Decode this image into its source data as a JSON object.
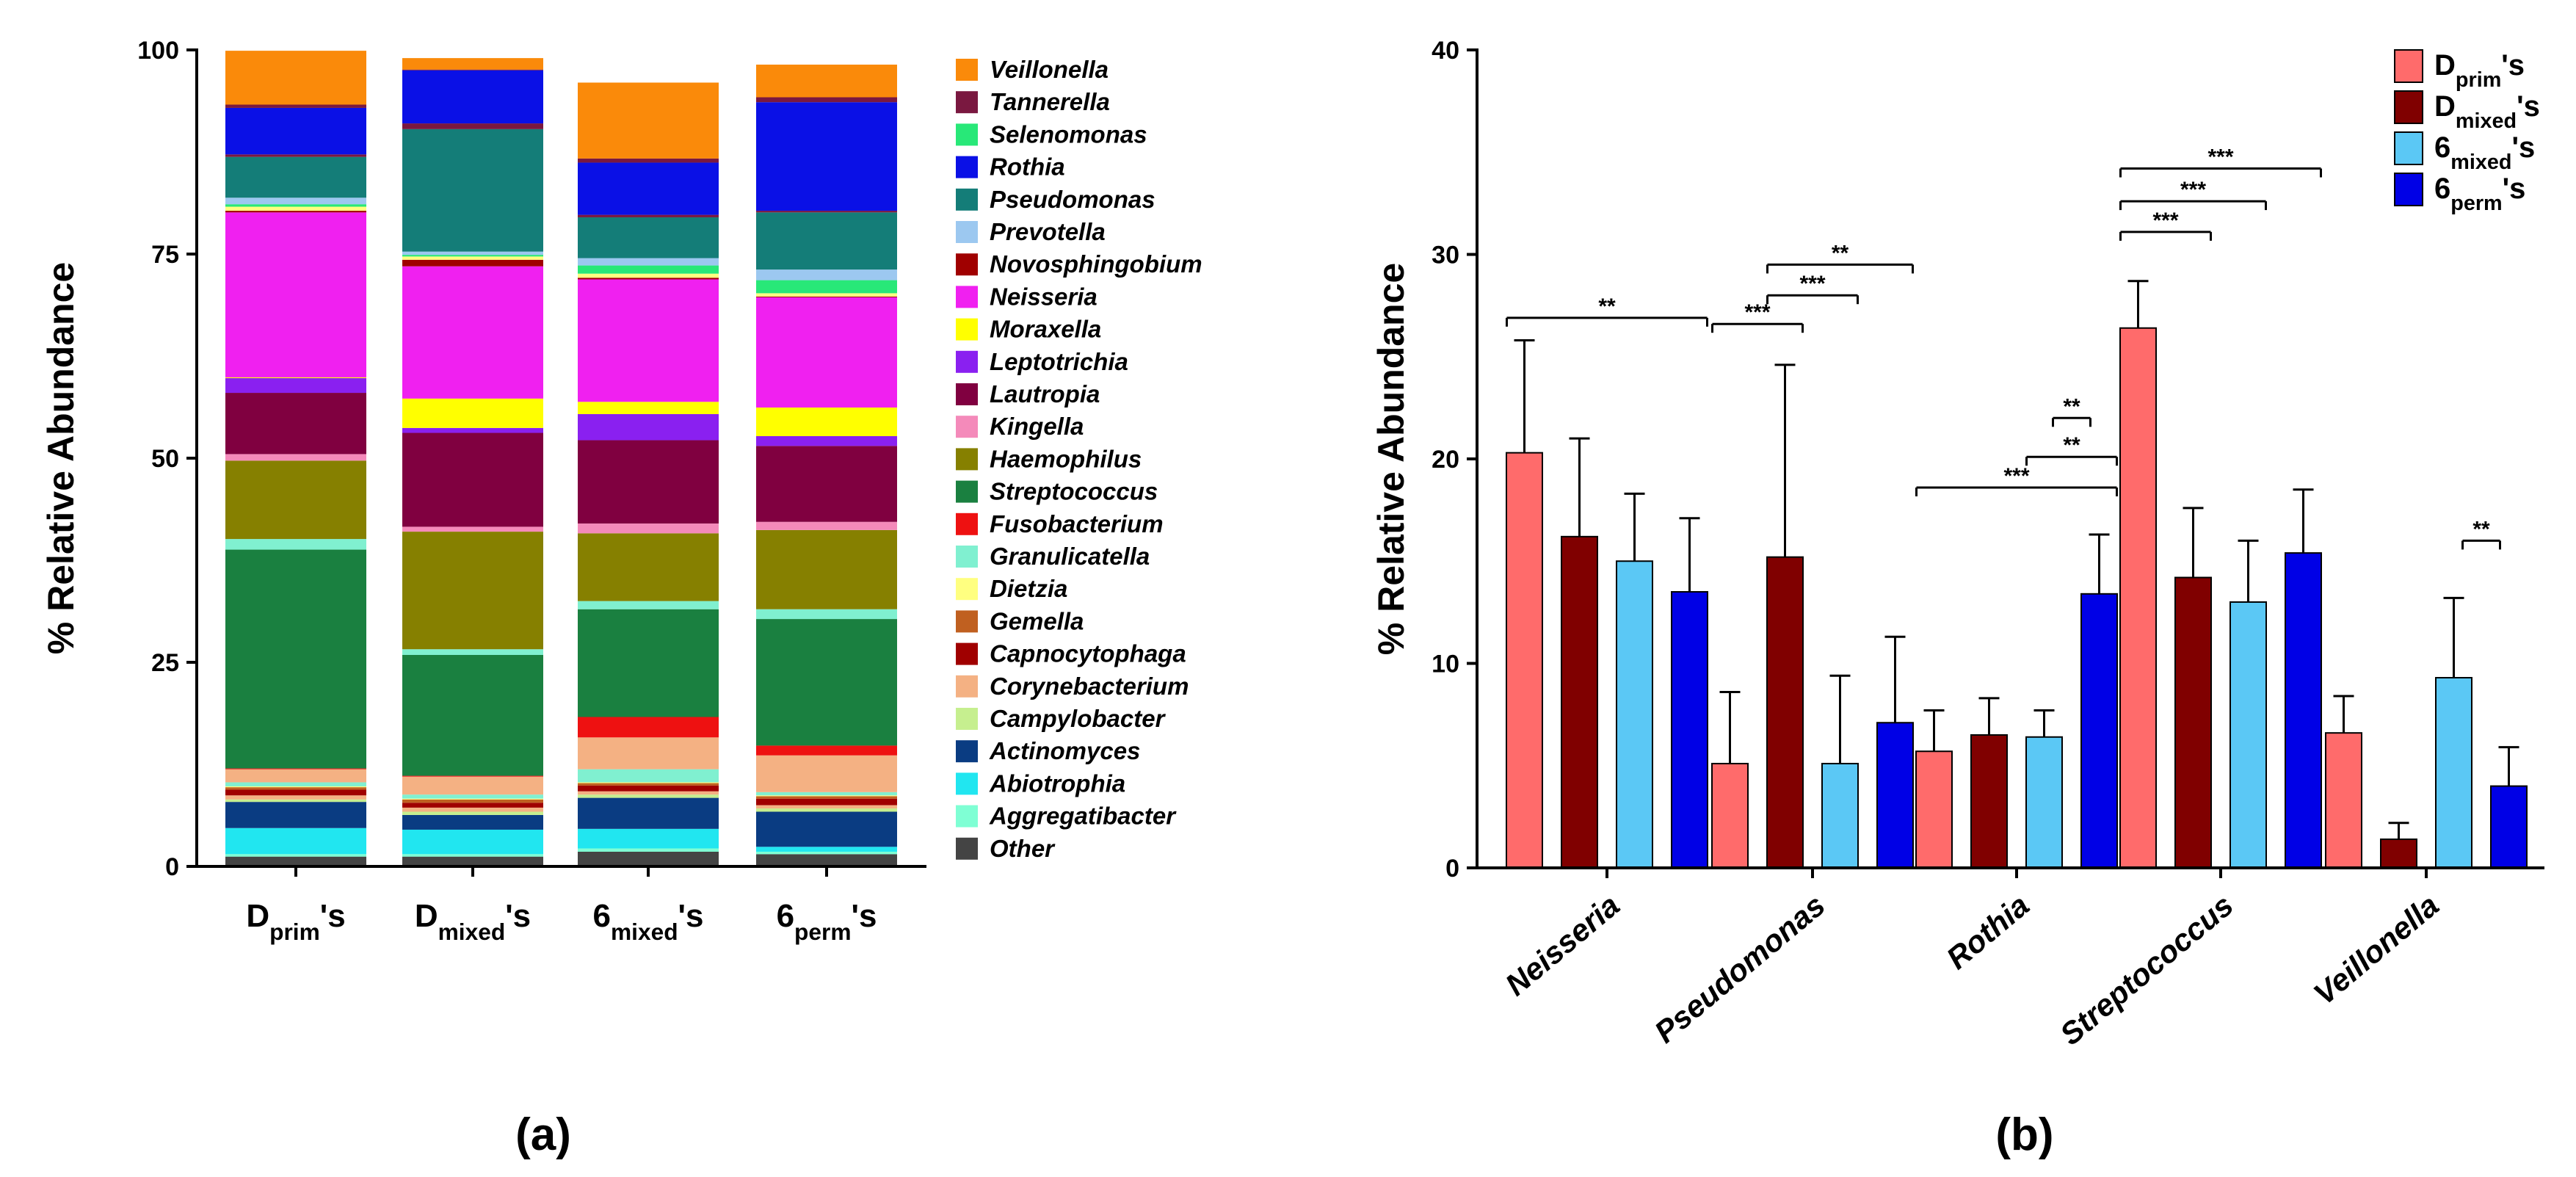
{
  "chart_data": [
    {
      "type": "bar",
      "stacked": true,
      "panel_label": "(a)",
      "ylabel": "% Relative Abundance",
      "ylim": [
        0,
        100
      ],
      "yticks": [
        "0",
        "25",
        "50",
        "75",
        "100"
      ],
      "categories": [
        {
          "main": "D",
          "sub": "prim",
          "suffix": "'s"
        },
        {
          "main": "D",
          "sub": "mixed",
          "suffix": "'s"
        },
        {
          "main": "6",
          "sub": "mixed",
          "suffix": "'s"
        },
        {
          "main": "6",
          "sub": "perm",
          "suffix": "'s"
        }
      ],
      "series": [
        {
          "name": "Other",
          "color": "#444444",
          "values": [
            1.2,
            1.2,
            1.8,
            1.5
          ]
        },
        {
          "name": "Aggregatibacter",
          "color": "#7fffd4",
          "values": [
            0.3,
            0.3,
            0.4,
            0.3
          ]
        },
        {
          "name": "Abiotrophia",
          "color": "#21e6f0",
          "values": [
            3.2,
            3.0,
            2.4,
            0.6
          ]
        },
        {
          "name": "Actinomyces",
          "color": "#0a3c82",
          "values": [
            3.2,
            1.8,
            3.8,
            4.3
          ]
        },
        {
          "name": "Campylobacter",
          "color": "#c6ef8f",
          "values": [
            0.3,
            0.4,
            0.4,
            0.4
          ]
        },
        {
          "name": "Corynebacterium",
          "color": "#f4b183",
          "values": [
            0.5,
            0.5,
            0.4,
            0.4
          ]
        },
        {
          "name": "Capnocytophaga",
          "color": "#a00000",
          "values": [
            0.7,
            0.6,
            0.7,
            0.8
          ]
        },
        {
          "name": "Gemella",
          "color": "#c06020",
          "values": [
            0.3,
            0.4,
            0.3,
            0.3
          ]
        },
        {
          "name": "Dietzia",
          "color": "#ffff80",
          "values": [
            0.1,
            0.1,
            0.1,
            0.1
          ]
        },
        {
          "name": "Granulicatella",
          "color": "#80f0d0",
          "values": [
            0.5,
            0.5,
            1.6,
            0.4
          ]
        },
        {
          "name": "Corynebacterium",
          "color": "#f4b183",
          "values": [
            1.6,
            2.2,
            3.9,
            4.5
          ]
        },
        {
          "name": "Fusobacterium",
          "color": "#ee1111",
          "values": [
            0.1,
            0.1,
            2.5,
            1.2
          ]
        },
        {
          "name": "Streptococcus",
          "color": "#1a8040",
          "values": [
            26.8,
            14.8,
            13.2,
            15.5
          ]
        },
        {
          "name": "Granulicatella",
          "color": "#80f0d0",
          "values": [
            1.3,
            0.7,
            1.0,
            1.2
          ]
        },
        {
          "name": "Haemophilus",
          "color": "#868000",
          "values": [
            9.6,
            14.4,
            8.3,
            9.7
          ]
        },
        {
          "name": "Kingella",
          "color": "#f48aba",
          "values": [
            0.8,
            0.6,
            1.2,
            1.0
          ]
        },
        {
          "name": "Lautropia",
          "color": "#800040",
          "values": [
            7.5,
            11.5,
            10.2,
            9.3
          ]
        },
        {
          "name": "Leptotrichia",
          "color": "#8a20f0",
          "values": [
            1.8,
            0.6,
            3.2,
            1.2
          ]
        },
        {
          "name": "Moraxella",
          "color": "#ffff00",
          "values": [
            0.1,
            3.6,
            1.5,
            3.5
          ]
        },
        {
          "name": "Neisseria",
          "color": "#f020f0",
          "values": [
            20.2,
            16.2,
            15.0,
            13.5
          ]
        },
        {
          "name": "Novosphingobium",
          "color": "#a00000",
          "values": [
            0.2,
            0.8,
            0.2,
            0.1
          ]
        },
        {
          "name": "Dietzia",
          "color": "#ffff80",
          "values": [
            0.5,
            0.4,
            0.5,
            0.4
          ]
        },
        {
          "name": "Selenomonas",
          "color": "#28e878",
          "values": [
            0.3,
            0.2,
            1.0,
            1.6
          ]
        },
        {
          "name": "Prevotella",
          "color": "#9cc8f0",
          "values": [
            0.8,
            0.4,
            0.9,
            1.3
          ]
        },
        {
          "name": "Pseudomonas",
          "color": "#147d78",
          "values": [
            5.0,
            15.0,
            5.0,
            7.0
          ]
        },
        {
          "name": "Tannerella",
          "color": "#7a1840",
          "values": [
            0.3,
            0.7,
            0.3,
            0.2
          ]
        },
        {
          "name": "Rothia",
          "color": "#0a10e6",
          "values": [
            5.7,
            6.5,
            6.4,
            13.3
          ]
        },
        {
          "name": "Tannerella",
          "color": "#7a1840",
          "values": [
            0.4,
            0.1,
            0.5,
            0.6
          ]
        },
        {
          "name": "Veillonella",
          "color": "#fa8a0a",
          "values": [
            6.6,
            1.4,
            9.3,
            4.0
          ]
        }
      ],
      "legend": [
        {
          "name": "Veillonella",
          "color": "#fa8a0a"
        },
        {
          "name": "Tannerella",
          "color": "#7a1840"
        },
        {
          "name": "Selenomonas",
          "color": "#28e878"
        },
        {
          "name": "Rothia",
          "color": "#0a10e6"
        },
        {
          "name": "Pseudomonas",
          "color": "#147d78"
        },
        {
          "name": "Prevotella",
          "color": "#9cc8f0"
        },
        {
          "name": "Novosphingobium",
          "color": "#a00000"
        },
        {
          "name": "Neisseria",
          "color": "#f020f0"
        },
        {
          "name": "Moraxella",
          "color": "#ffff00"
        },
        {
          "name": "Leptotrichia",
          "color": "#8a20f0"
        },
        {
          "name": "Lautropia",
          "color": "#800040"
        },
        {
          "name": "Kingella",
          "color": "#f48aba"
        },
        {
          "name": "Haemophilus",
          "color": "#868000"
        },
        {
          "name": "Streptococcus",
          "color": "#1a8040"
        },
        {
          "name": "Fusobacterium",
          "color": "#ee1111"
        },
        {
          "name": "Granulicatella",
          "color": "#80f0d0"
        },
        {
          "name": "Dietzia",
          "color": "#ffff80"
        },
        {
          "name": "Gemella",
          "color": "#c06020"
        },
        {
          "name": "Capnocytophaga",
          "color": "#a00000"
        },
        {
          "name": "Corynebacterium",
          "color": "#f4b183"
        },
        {
          "name": "Campylobacter",
          "color": "#c6ef8f"
        },
        {
          "name": "Actinomyces",
          "color": "#0a3c82"
        },
        {
          "name": "Abiotrophia",
          "color": "#21e6f0"
        },
        {
          "name": "Aggregatibacter",
          "color": "#7fffd4"
        },
        {
          "name": "Other",
          "color": "#444444"
        }
      ]
    },
    {
      "type": "bar",
      "grouped": true,
      "panel_label": "(b)",
      "ylabel": "% Relative Abundance",
      "ylim": [
        0,
        40
      ],
      "yticks": [
        "0",
        "10",
        "20",
        "30",
        "40"
      ],
      "categories": [
        "Neisseria",
        "Pseudomonas",
        "Rothia",
        "Streptococcus",
        "Veillonella"
      ],
      "series": [
        {
          "name": "D",
          "sub": "prim",
          "suffix": "'s",
          "color": "#ff6b6b",
          "values": [
            20.3,
            5.1,
            5.7,
            26.4,
            6.6
          ],
          "error": [
            5.5,
            3.5,
            2.0,
            2.3,
            1.8
          ]
        },
        {
          "name": "D",
          "sub": "mixed",
          "suffix": "'s",
          "color": "#800000",
          "values": [
            16.2,
            15.2,
            6.5,
            14.2,
            1.4
          ],
          "error": [
            4.8,
            9.4,
            1.8,
            3.4,
            0.8
          ]
        },
        {
          "name": "6",
          "sub": "mixed",
          "suffix": "'s",
          "color": "#5bc8f5",
          "values": [
            15.0,
            5.1,
            6.4,
            13.0,
            9.3
          ],
          "error": [
            3.3,
            4.3,
            1.3,
            3.0,
            3.9
          ]
        },
        {
          "name": "6",
          "sub": "perm",
          "suffix": "'s",
          "color": "#0000e6",
          "values": [
            13.5,
            7.1,
            13.4,
            15.4,
            4.0
          ],
          "error": [
            3.6,
            4.2,
            2.9,
            3.1,
            1.9
          ]
        }
      ],
      "significance": [
        {
          "cat": 0,
          "from": 0,
          "to": 3,
          "y": 26.9,
          "label": "**"
        },
        {
          "cat": 1,
          "from": 0,
          "to": 1,
          "y": 26.6,
          "label": "***"
        },
        {
          "cat": 1,
          "from": 1,
          "to": 2,
          "y": 28.0,
          "label": "***"
        },
        {
          "cat": 1,
          "from": 1,
          "to": 3,
          "y": 29.5,
          "label": "**"
        },
        {
          "cat": 2,
          "from": 0,
          "to": 3,
          "y": 18.6,
          "label": "***"
        },
        {
          "cat": 2,
          "from": 2,
          "to": 3,
          "y": 20.1,
          "label": "**"
        },
        {
          "cat": 2,
          "from": 2,
          "to": 3,
          "y": 22.0,
          "label": "**",
          "short": true
        },
        {
          "cat": 3,
          "from": 0,
          "to": 1,
          "y": 31.1,
          "label": "***"
        },
        {
          "cat": 3,
          "from": 0,
          "to": 2,
          "y": 32.6,
          "label": "***"
        },
        {
          "cat": 3,
          "from": 0,
          "to": 3,
          "y": 34.2,
          "label": "***"
        },
        {
          "cat": 4,
          "from": 2,
          "to": 3,
          "y": 16.0,
          "label": "**",
          "short": true
        }
      ]
    }
  ]
}
